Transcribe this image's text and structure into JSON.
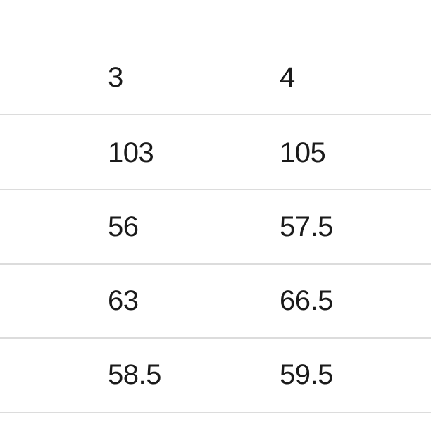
{
  "table": {
    "headers": [
      "3",
      "4"
    ],
    "rows": [
      [
        "103",
        "105"
      ],
      [
        "56",
        "57.5"
      ],
      [
        "63",
        "66.5"
      ],
      [
        "58.5",
        "59.5"
      ]
    ]
  }
}
